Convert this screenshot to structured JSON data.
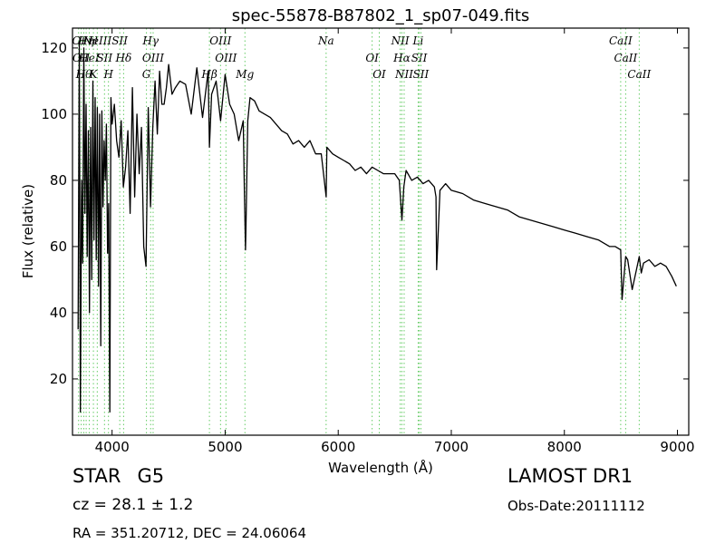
{
  "chart_data": {
    "type": "line",
    "title": "spec-55878-B87802_1_sp07-049.fits",
    "xlabel": "Wavelength (Å)",
    "ylabel": "Flux (relative)",
    "xlim": [
      3650,
      9100
    ],
    "ylim": [
      3,
      126
    ],
    "xticks": [
      4000,
      5000,
      6000,
      7000,
      8000,
      9000
    ],
    "yticks": [
      20,
      40,
      60,
      80,
      100,
      120
    ],
    "grid": false,
    "series": [
      {
        "color": "#000000",
        "x": [
          3700,
          3710,
          3720,
          3730,
          3740,
          3750,
          3760,
          3770,
          3780,
          3790,
          3800,
          3810,
          3820,
          3830,
          3840,
          3850,
          3860,
          3870,
          3880,
          3890,
          3900,
          3910,
          3920,
          3930,
          3940,
          3950,
          3960,
          3970,
          3980,
          3990,
          4000,
          4020,
          4040,
          4060,
          4080,
          4100,
          4120,
          4140,
          4160,
          4180,
          4200,
          4220,
          4240,
          4260,
          4280,
          4300,
          4320,
          4340,
          4360,
          4380,
          4400,
          4420,
          4440,
          4460,
          4480,
          4500,
          4530,
          4560,
          4600,
          4650,
          4700,
          4750,
          4800,
          4850,
          4861,
          4880,
          4920,
          4960,
          5000,
          5040,
          5080,
          5120,
          5160,
          5170,
          5180,
          5183,
          5200,
          5220,
          5260,
          5300,
          5350,
          5400,
          5450,
          5500,
          5550,
          5600,
          5650,
          5700,
          5750,
          5800,
          5850,
          5893,
          5900,
          5950,
          6000,
          6050,
          6100,
          6150,
          6200,
          6250,
          6300,
          6350,
          6400,
          6450,
          6500,
          6540,
          6563,
          6580,
          6600,
          6650,
          6700,
          6750,
          6800,
          6850,
          6865,
          6870,
          6900,
          6950,
          7000,
          7100,
          7200,
          7300,
          7400,
          7500,
          7600,
          7700,
          7800,
          7900,
          8000,
          8100,
          8200,
          8300,
          8400,
          8450,
          8498,
          8510,
          8542,
          8560,
          8600,
          8662,
          8680,
          8700,
          8750,
          8800,
          8850,
          8900,
          8950,
          8990
        ],
        "values": [
          35,
          122,
          10,
          80,
          55,
          120,
          70,
          103,
          57,
          95,
          40,
          96,
          50,
          110,
          62,
          105,
          56,
          102,
          48,
          100,
          30,
          101,
          72,
          92,
          80,
          97,
          58,
          73,
          10,
          105,
          97,
          103,
          92,
          87,
          98,
          78,
          84,
          95,
          70,
          108,
          75,
          100,
          82,
          96,
          60,
          54,
          102,
          72,
          96,
          110,
          94,
          113,
          103,
          103,
          108,
          115,
          106,
          108,
          110,
          109,
          100,
          114,
          99,
          113,
          90,
          106,
          110,
          98,
          112,
          103,
          100,
          92,
          98,
          76,
          59,
          64,
          98,
          105,
          104,
          101,
          100,
          99,
          97,
          95,
          94,
          91,
          92,
          90,
          92,
          88,
          88,
          75,
          90,
          88,
          87,
          86,
          85,
          83,
          84,
          82,
          84,
          83,
          82,
          82,
          82,
          80,
          68,
          78,
          83,
          80,
          81,
          79,
          80,
          78,
          75,
          53,
          77,
          79,
          77,
          76,
          74,
          73,
          72,
          71,
          69,
          68,
          67,
          66,
          65,
          64,
          63,
          62,
          60,
          60,
          59,
          44,
          57,
          56,
          47,
          57,
          52,
          55,
          56,
          54,
          55,
          54,
          51,
          48
        ]
      }
    ],
    "line_markers": [
      {
        "wl": 3704,
        "labels": [
          "OI"
        ],
        "color": "#66cc66"
      },
      {
        "wl": 3727,
        "labels": [
          "OII"
        ],
        "color": "#66cc66"
      },
      {
        "wl": 3750,
        "labels": [
          "Hθ"
        ],
        "color": "#66cc66"
      },
      {
        "wl": 3771,
        "labels": [
          "Hη"
        ],
        "color": "#66cc66"
      },
      {
        "wl": 3798,
        "labels": [
          "HeI"
        ],
        "color": "#66cc66"
      },
      {
        "wl": 3835,
        "labels": [
          "K",
          "H"
        ],
        "color": "#66cc66"
      },
      {
        "wl": 3869,
        "labels": [
          "NeIII"
        ],
        "color": "#66cc66"
      },
      {
        "wl": 3933,
        "labels": [
          "SII"
        ],
        "color": "#66cc66"
      },
      {
        "wl": 3968,
        "labels": [
          "H"
        ],
        "color": "#66cc66"
      },
      {
        "wl": 4068,
        "labels": [
          "SII"
        ],
        "color": "#66cc66"
      },
      {
        "wl": 4102,
        "labels": [
          "Hδ"
        ],
        "color": "#66cc66"
      },
      {
        "wl": 4304,
        "labels": [
          "G"
        ],
        "color": "#66cc66"
      },
      {
        "wl": 4341,
        "labels": [
          "Hγ"
        ],
        "color": "#66cc66"
      },
      {
        "wl": 4363,
        "labels": [
          "OIII"
        ],
        "color": "#66cc66"
      },
      {
        "wl": 4861,
        "labels": [
          "Hβ"
        ],
        "color": "#66cc66"
      },
      {
        "wl": 4959,
        "labels": [
          "OIII"
        ],
        "color": "#66cc66"
      },
      {
        "wl": 5007,
        "labels": [
          "OIII"
        ],
        "color": "#66cc66"
      },
      {
        "wl": 5175,
        "labels": [
          "Mg"
        ],
        "color": "#66cc66"
      },
      {
        "wl": 5893,
        "labels": [
          "Na"
        ],
        "color": "#66cc66"
      },
      {
        "wl": 6300,
        "labels": [
          "OI"
        ],
        "color": "#66cc66"
      },
      {
        "wl": 6363,
        "labels": [
          "OI"
        ],
        "color": "#66cc66"
      },
      {
        "wl": 6548,
        "labels": [
          "NII"
        ],
        "color": "#66cc66"
      },
      {
        "wl": 6563,
        "labels": [
          "Hα"
        ],
        "color": "#66cc66"
      },
      {
        "wl": 6583,
        "labels": [
          "NII"
        ],
        "color": "#66cc66"
      },
      {
        "wl": 6707,
        "labels": [
          "Li"
        ],
        "color": "#66cc66"
      },
      {
        "wl": 6716,
        "labels": [
          "SII"
        ],
        "color": "#66cc66"
      },
      {
        "wl": 6731,
        "labels": [
          "SII"
        ],
        "color": "#66cc66"
      },
      {
        "wl": 8498,
        "labels": [
          "CaII"
        ],
        "color": "#66cc66"
      },
      {
        "wl": 8542,
        "labels": [
          "CaII"
        ],
        "color": "#66cc66"
      },
      {
        "wl": 8662,
        "labels": [
          "CaII"
        ],
        "color": "#66cc66"
      }
    ]
  },
  "info": {
    "class_label": "STAR",
    "subclass": "G5",
    "redshift": "cz = 28.1  ± 1.2",
    "coords": "RA = 351.20712, DEC = 24.06064",
    "survey": "LAMOST DR1",
    "obs_date": "Obs-Date:20111112"
  }
}
